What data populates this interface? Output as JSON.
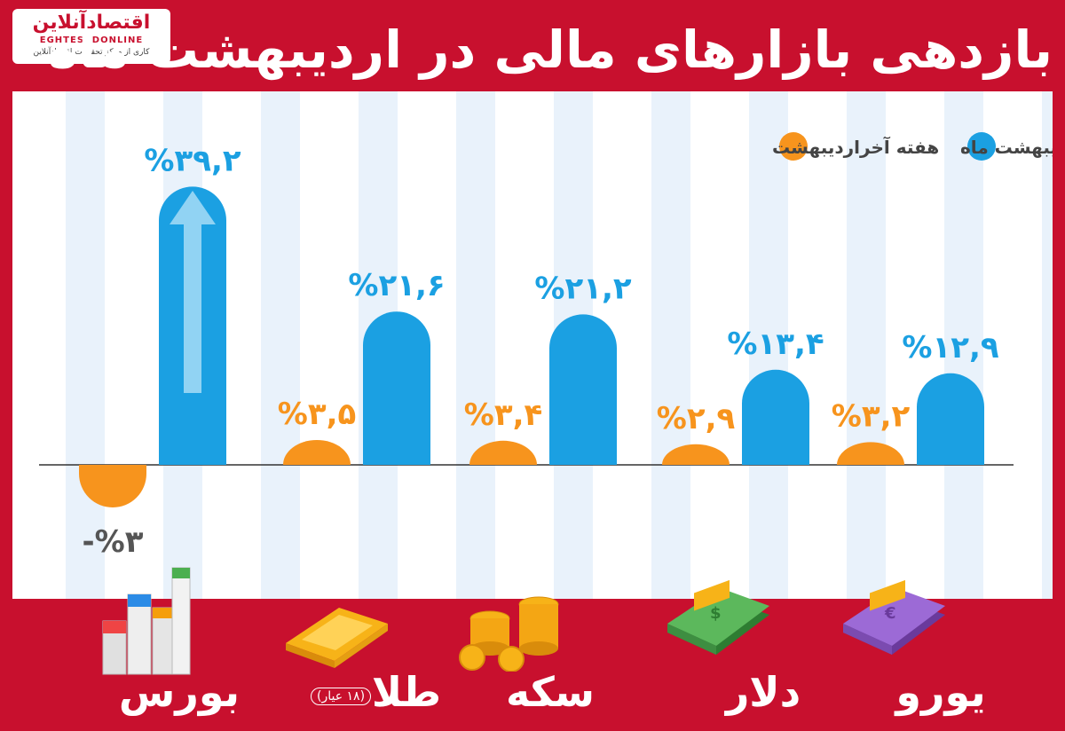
{
  "header": {
    "title": "بازدهی بازارهای مالی در اردیبهشت ماه",
    "logo_name": "اقتصادآنلاین",
    "logo_latin": "EGHTESADONLINE",
    "logo_tagline": "کاری از مرکز تحقیقات اقتصادآنلاین"
  },
  "colors": {
    "background": "#c8102e",
    "monthly": "#1ba0e2",
    "weekly": "#f7941d",
    "value_blue": "#1ba0e2",
    "value_orange": "#f7941d"
  },
  "chart_data": {
    "type": "bar",
    "categories": [
      "بورس",
      "طلا",
      "سکه",
      "دلار",
      "یورو"
    ],
    "category_note": {
      "طلا": "(۱۸ عیار)"
    },
    "series": [
      {
        "name": "هفته آخراردیبهشت",
        "values": [
          -3,
          3.5,
          3.4,
          2.9,
          3.2
        ],
        "labels": [
          "-%۳",
          "%۳,۵",
          "%۳,۴",
          "%۲,۹",
          "%۳,۲"
        ],
        "color": "#f7941d"
      },
      {
        "name": "کل اردیبهشت ماه",
        "values": [
          39.2,
          21.6,
          21.2,
          13.4,
          12.9
        ],
        "labels": [
          "%۳۹,۲",
          "%۲۱,۶",
          "%۲۱,۲",
          "%۱۳,۴",
          "%۱۲,۹"
        ],
        "color": "#1ba0e2"
      }
    ],
    "ylim": [
      -5,
      45
    ],
    "grid": false,
    "legend_position": "top-right"
  },
  "bottom_labels": {
    "bourse": "بورس",
    "gold": "طلا",
    "gold_note": "(۱۸ عیار)",
    "coin": "سکه",
    "dollar": "دلار",
    "euro": "یورو"
  }
}
